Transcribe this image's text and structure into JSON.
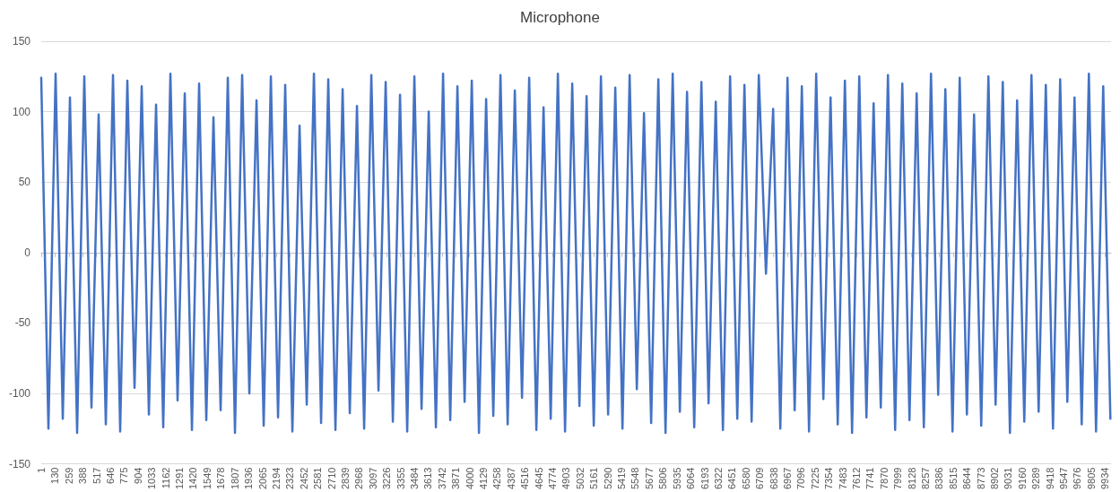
{
  "chart_data": {
    "type": "line",
    "title": "Microphone",
    "x": [
      1,
      68,
      135,
      202,
      269,
      336,
      403,
      470,
      537,
      604,
      671,
      738,
      805,
      872,
      939,
      1006,
      1073,
      1140,
      1207,
      1274,
      1341,
      1408,
      1475,
      1542,
      1609,
      1676,
      1743,
      1810,
      1877,
      1944,
      2011,
      2078,
      2145,
      2212,
      2279,
      2346,
      2413,
      2480,
      2547,
      2614,
      2681,
      2748,
      2815,
      2882,
      2949,
      3016,
      3083,
      3150,
      3217,
      3284,
      3351,
      3418,
      3485,
      3552,
      3619,
      3686,
      3753,
      3820,
      3887,
      3954,
      4021,
      4088,
      4155,
      4222,
      4289,
      4356,
      4423,
      4490,
      4557,
      4624,
      4691,
      4758,
      4825,
      4892,
      4959,
      5026,
      5093,
      5160,
      5227,
      5294,
      5361,
      5428,
      5495,
      5562,
      5629,
      5696,
      5763,
      5830,
      5897,
      5964,
      6031,
      6098,
      6165,
      6232,
      6299,
      6366,
      6433,
      6500,
      6567,
      6634,
      6701,
      6768,
      6835,
      6902,
      6969,
      7036,
      7103,
      7170,
      7237,
      7304,
      7371,
      7438,
      7505,
      7572,
      7639,
      7706,
      7773,
      7840,
      7907,
      7974,
      8041,
      8108,
      8175,
      8242,
      8309,
      8376,
      8443,
      8510,
      8577,
      8644,
      8711,
      8778,
      8845,
      8912,
      8979,
      9046,
      9113,
      9180,
      9247,
      9314,
      9381,
      9448,
      9515,
      9582,
      9649,
      9716,
      9783,
      9850,
      9917,
      9984
    ],
    "series": [
      {
        "color": "#4472c4",
        "values": [
          124,
          -125,
          127,
          -118,
          110,
          -128,
          125,
          -110,
          98,
          -122,
          126,
          -127,
          122,
          -96,
          118,
          -115,
          105,
          -124,
          127,
          -105,
          113,
          -126,
          120,
          -119,
          96,
          -112,
          124,
          -128,
          126,
          -100,
          108,
          -123,
          125,
          -117,
          119,
          -127,
          90,
          -108,
          127,
          -121,
          123,
          -126,
          116,
          -114,
          104,
          -125,
          126,
          -98,
          121,
          -120,
          112,
          -127,
          125,
          -111,
          100,
          -124,
          127,
          -119,
          118,
          -106,
          122,
          -128,
          109,
          -116,
          126,
          -122,
          115,
          -103,
          124,
          -126,
          103,
          -118,
          127,
          -127,
          120,
          -109,
          111,
          -123,
          125,
          -115,
          117,
          -125,
          126,
          -97,
          99,
          -121,
          123,
          -128,
          127,
          -113,
          114,
          -124,
          121,
          -107,
          107,
          -126,
          125,
          -118,
          119,
          -120,
          126,
          -15,
          102,
          -125,
          124,
          -112,
          118,
          -127,
          127,
          -104,
          110,
          -122,
          122,
          -128,
          125,
          -117,
          106,
          -110,
          126,
          -126,
          120,
          -119,
          113,
          -124,
          127,
          -101,
          116,
          -127,
          124,
          -115,
          98,
          -123,
          125,
          -108,
          121,
          -128,
          108,
          -120,
          126,
          -113,
          119,
          -125,
          123,
          -106,
          110,
          -122,
          127,
          -127,
          118,
          -118
        ]
      }
    ],
    "xlim": [
      1,
      9990
    ],
    "xticks": [
      1,
      130,
      259,
      388,
      517,
      646,
      775,
      904,
      1033,
      1162,
      1291,
      1420,
      1549,
      1678,
      1807,
      1936,
      2065,
      2194,
      2323,
      2452,
      2581,
      2710,
      2839,
      2968,
      3097,
      3226,
      3355,
      3484,
      3613,
      3742,
      3871,
      4000,
      4129,
      4258,
      4387,
      4516,
      4645,
      4774,
      4903,
      5032,
      5161,
      5290,
      5419,
      5548,
      5677,
      5806,
      5935,
      6064,
      6193,
      6322,
      6451,
      6580,
      6709,
      6838,
      6967,
      7096,
      7225,
      7354,
      7483,
      7612,
      7741,
      7870,
      7999,
      8128,
      8257,
      8386,
      8515,
      8644,
      8773,
      8902,
      9031,
      9160,
      9289,
      9418,
      9547,
      9676,
      9805,
      9934
    ],
    "ylim": [
      -150,
      150
    ],
    "yticks": [
      -150,
      -100,
      -50,
      0,
      50,
      100,
      150
    ],
    "grid": "y",
    "marker": "none",
    "line_style": "solid"
  }
}
